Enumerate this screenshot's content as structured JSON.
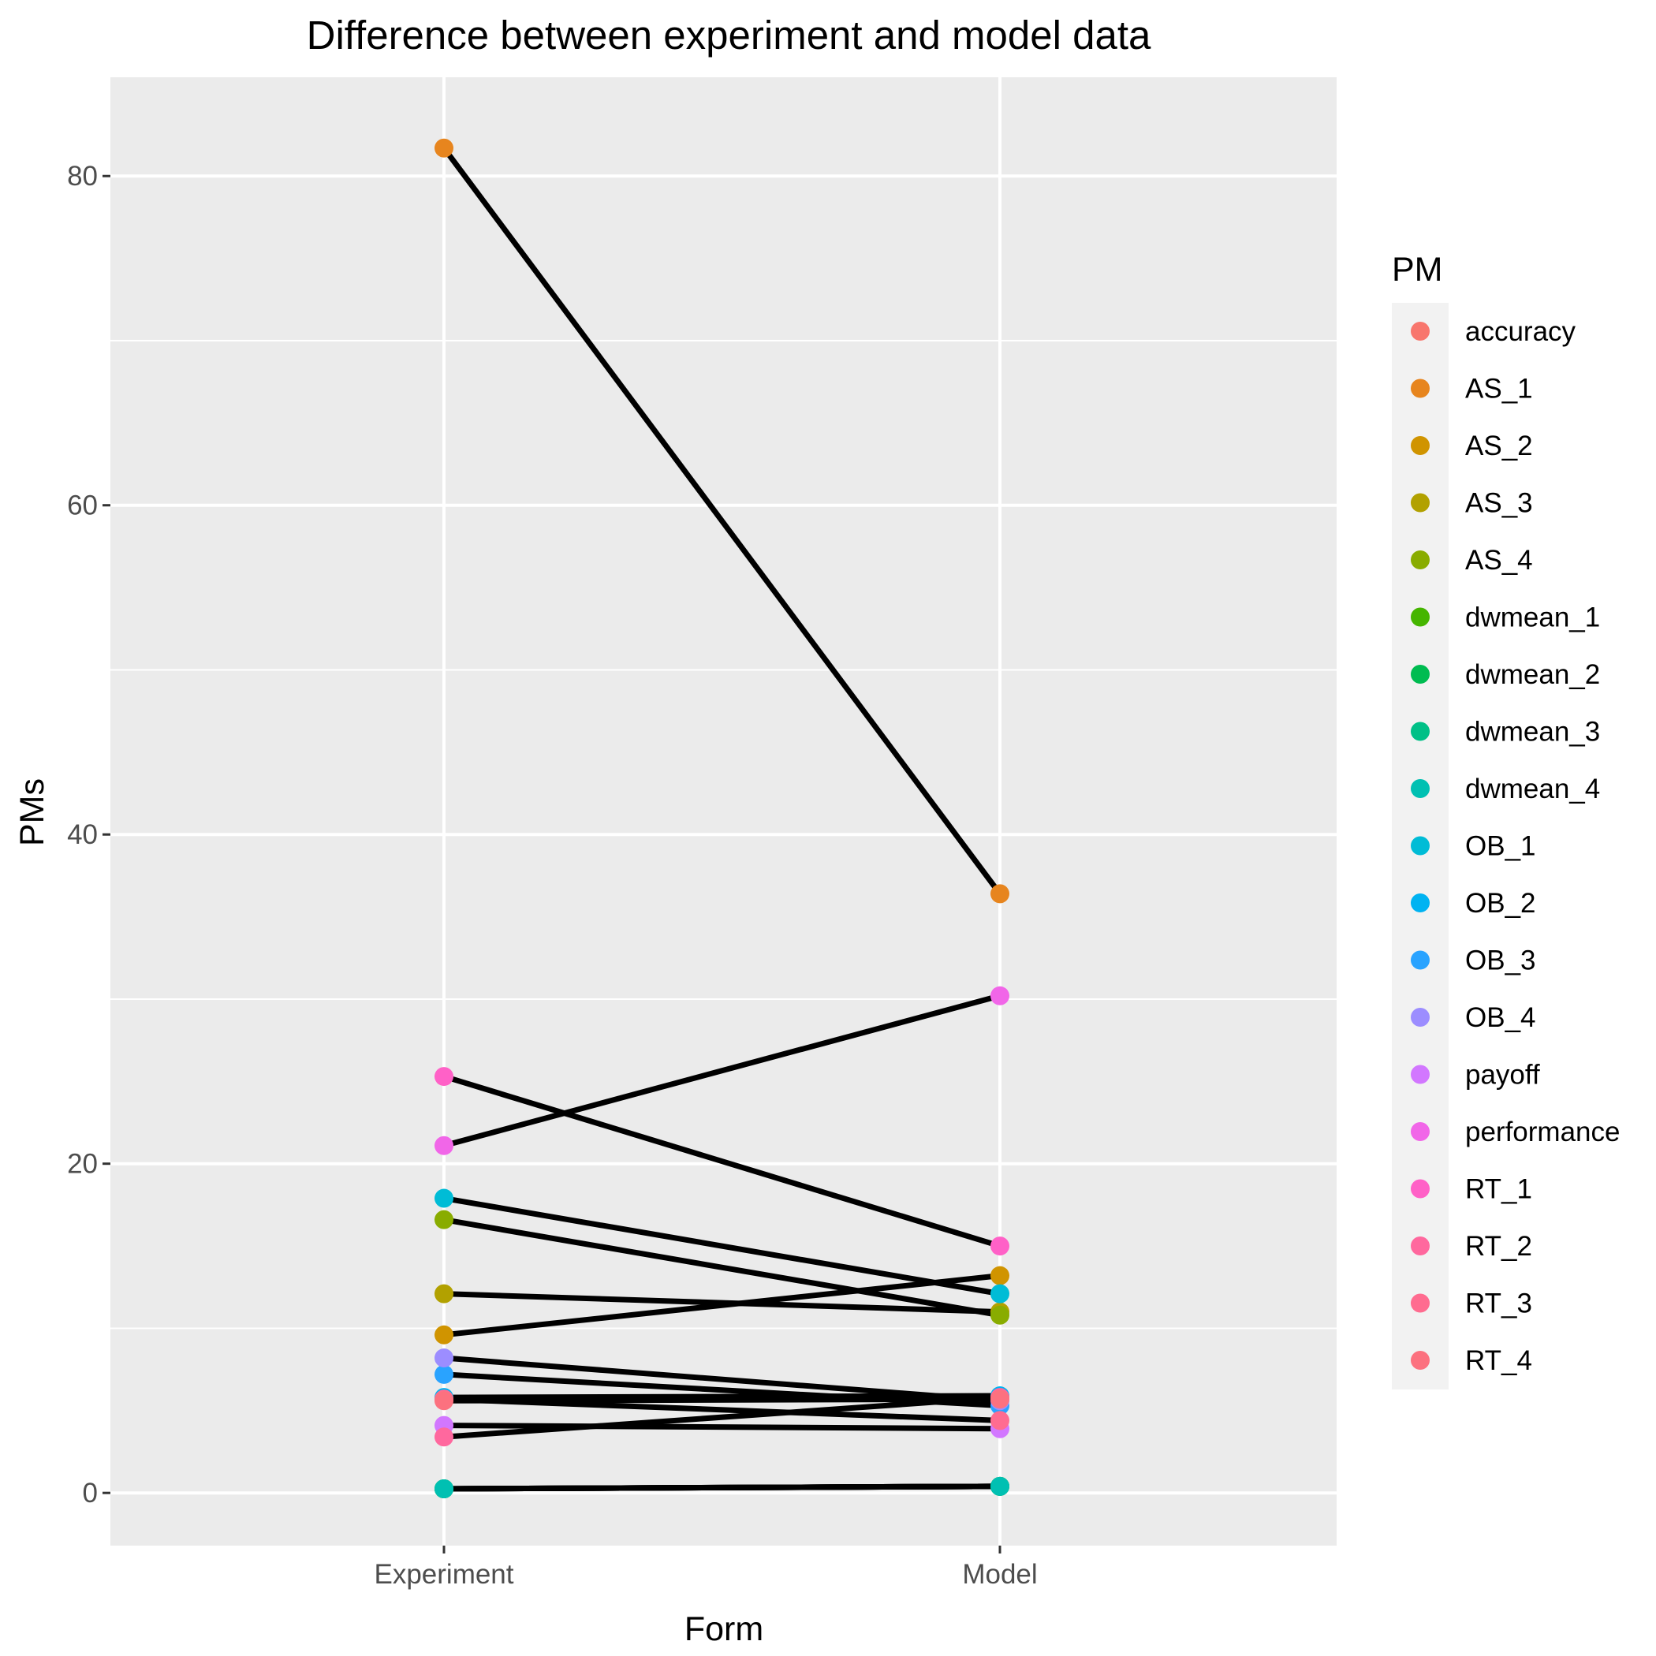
{
  "chart_data": {
    "type": "line",
    "title": "Difference between experiment and model data",
    "xlabel": "Form",
    "ylabel": "PMs",
    "categories": [
      "Experiment",
      "Model"
    ],
    "ylim": [
      -3.2,
      86
    ],
    "yticks": [
      0,
      20,
      40,
      60,
      80
    ],
    "grid": true,
    "legend": {
      "title": "PM",
      "position": "right"
    },
    "series": [
      {
        "name": "accuracy",
        "color": "#F8766D",
        "values": [
          0.25,
          0.4
        ]
      },
      {
        "name": "AS_1",
        "color": "#E7851E",
        "values": [
          81.7,
          36.4
        ]
      },
      {
        "name": "AS_2",
        "color": "#D09400",
        "values": [
          9.6,
          13.2
        ]
      },
      {
        "name": "AS_3",
        "color": "#B2A100",
        "values": [
          12.1,
          11.0
        ]
      },
      {
        "name": "AS_4",
        "color": "#89AC00",
        "values": [
          16.6,
          10.8
        ]
      },
      {
        "name": "dwmean_1",
        "color": "#45B500",
        "values": [
          0.25,
          0.4
        ]
      },
      {
        "name": "dwmean_2",
        "color": "#00BC51",
        "values": [
          0.25,
          0.4
        ]
      },
      {
        "name": "dwmean_3",
        "color": "#00C087",
        "values": [
          0.25,
          0.4
        ]
      },
      {
        "name": "dwmean_4",
        "color": "#00C0B2",
        "values": [
          0.25,
          0.4
        ]
      },
      {
        "name": "OB_1",
        "color": "#00BCD6",
        "values": [
          17.9,
          12.1
        ]
      },
      {
        "name": "OB_2",
        "color": "#00B3F2",
        "values": [
          5.8,
          5.9
        ]
      },
      {
        "name": "OB_3",
        "color": "#29A3FF",
        "values": [
          7.2,
          5.3
        ]
      },
      {
        "name": "OB_4",
        "color": "#9C8DFF",
        "values": [
          8.2,
          5.6
        ]
      },
      {
        "name": "payoff",
        "color": "#D277FF",
        "values": [
          4.1,
          3.9
        ]
      },
      {
        "name": "performance",
        "color": "#F166E8",
        "values": [
          21.1,
          30.2
        ]
      },
      {
        "name": "RT_1",
        "color": "#FF61C7",
        "values": [
          25.3,
          15.0
        ]
      },
      {
        "name": "RT_2",
        "color": "#FF689E",
        "values": [
          3.4,
          5.8
        ]
      },
      {
        "name": "RT_3",
        "color": "#FF6C90",
        "values": [
          5.7,
          4.4
        ]
      },
      {
        "name": "RT_4",
        "color": "#FC717F",
        "values": [
          5.6,
          5.7
        ]
      }
    ]
  }
}
